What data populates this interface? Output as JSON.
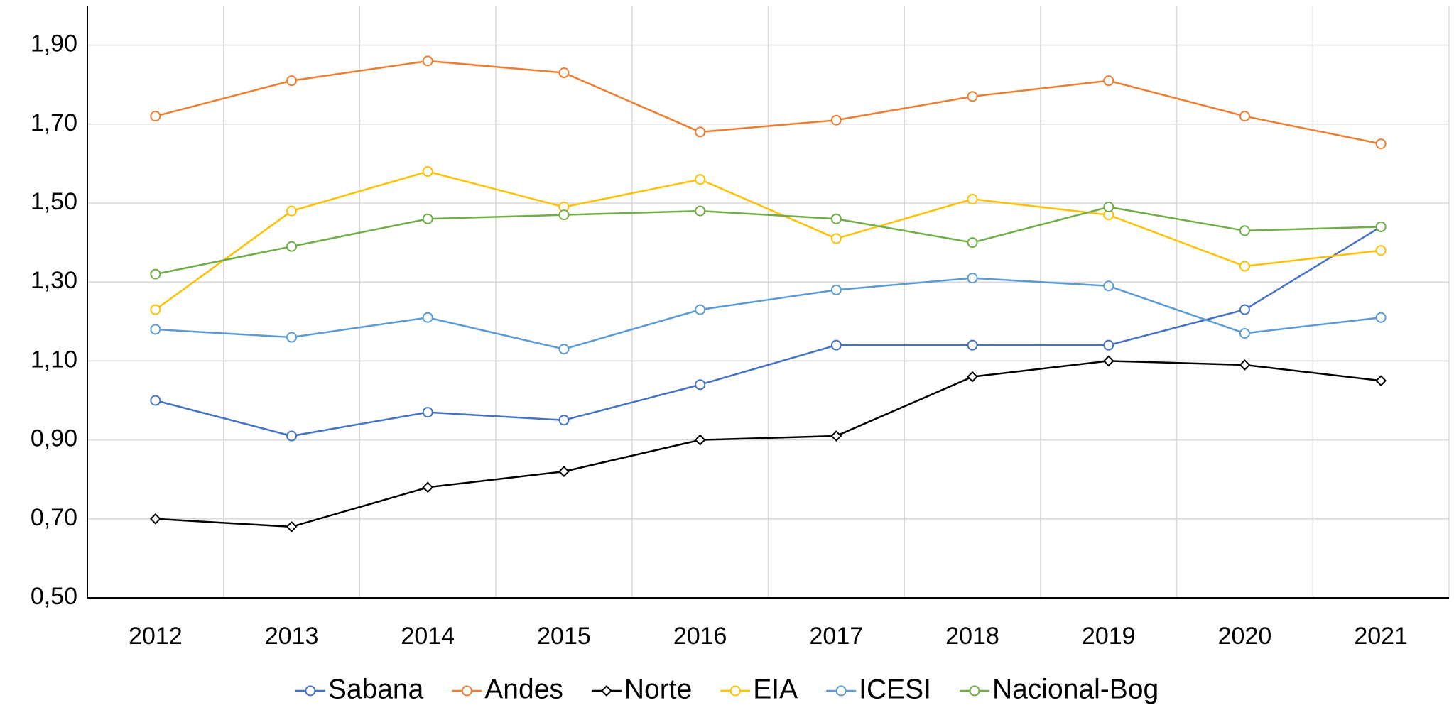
{
  "chart_data": {
    "type": "line",
    "categories": [
      "2012",
      "2013",
      "2014",
      "2015",
      "2016",
      "2017",
      "2018",
      "2019",
      "2020",
      "2021"
    ],
    "series": [
      {
        "name": "Sabana",
        "color": "#4472c4",
        "marker": "circle",
        "values": [
          1.0,
          0.91,
          0.97,
          0.95,
          1.04,
          1.14,
          1.14,
          1.14,
          1.23,
          1.44
        ]
      },
      {
        "name": "Andes",
        "color": "#ed7d31",
        "marker": "circle",
        "values": [
          1.72,
          1.81,
          1.86,
          1.83,
          1.68,
          1.71,
          1.77,
          1.81,
          1.72,
          1.65
        ]
      },
      {
        "name": "Norte",
        "color": "#000000",
        "marker": "diamond",
        "values": [
          0.7,
          0.68,
          0.78,
          0.82,
          0.9,
          0.91,
          1.06,
          1.1,
          1.09,
          1.05
        ]
      },
      {
        "name": "EIA",
        "color": "#ffc000",
        "marker": "circle",
        "values": [
          1.23,
          1.48,
          1.58,
          1.49,
          1.56,
          1.41,
          1.51,
          1.47,
          1.34,
          1.38
        ]
      },
      {
        "name": "ICESI",
        "color": "#5b9bd5",
        "marker": "circle",
        "values": [
          1.18,
          1.16,
          1.21,
          1.13,
          1.23,
          1.28,
          1.31,
          1.29,
          1.17,
          1.21
        ]
      },
      {
        "name": "Nacional-Bog",
        "color": "#70ad47",
        "marker": "circle",
        "values": [
          1.32,
          1.39,
          1.46,
          1.47,
          1.48,
          1.46,
          1.4,
          1.49,
          1.43,
          1.44
        ]
      }
    ],
    "ylim": [
      0.5,
      2.0
    ],
    "yticks": [
      {
        "value": 0.5,
        "label": "0,50"
      },
      {
        "value": 0.7,
        "label": "0,70"
      },
      {
        "value": 0.9,
        "label": "0,90"
      },
      {
        "value": 1.1,
        "label": "1,10"
      },
      {
        "value": 1.3,
        "label": "1,30"
      },
      {
        "value": 1.5,
        "label": "1,50"
      },
      {
        "value": 1.7,
        "label": "1,70"
      },
      {
        "value": 1.9,
        "label": "1,90"
      }
    ],
    "grid": true,
    "legend": "bottom"
  }
}
